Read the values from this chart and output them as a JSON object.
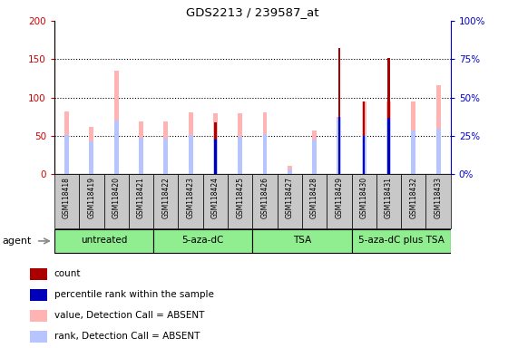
{
  "title": "GDS2213 / 239587_at",
  "samples": [
    "GSM118418",
    "GSM118419",
    "GSM118420",
    "GSM118421",
    "GSM118422",
    "GSM118423",
    "GSM118424",
    "GSM118425",
    "GSM118426",
    "GSM118427",
    "GSM118428",
    "GSM118429",
    "GSM118430",
    "GSM118431",
    "GSM118432",
    "GSM118433"
  ],
  "pink_values": [
    82,
    61,
    135,
    69,
    69,
    81,
    79,
    79,
    81,
    11,
    57,
    75,
    95,
    95,
    95,
    116
  ],
  "lightblue_values": [
    51,
    43,
    70,
    47,
    46,
    51,
    47,
    48,
    52,
    6,
    45,
    73,
    51,
    70,
    57,
    59
  ],
  "dark_red_values": [
    0,
    0,
    0,
    0,
    0,
    0,
    67,
    0,
    0,
    0,
    0,
    165,
    95,
    152,
    0,
    0
  ],
  "blue_values": [
    0,
    0,
    0,
    0,
    0,
    0,
    45,
    0,
    0,
    0,
    0,
    75,
    50,
    73,
    0,
    0
  ],
  "groups": [
    {
      "label": "untreated",
      "start": 0,
      "end": 4
    },
    {
      "label": "5-aza-dC",
      "start": 4,
      "end": 8
    },
    {
      "label": "TSA",
      "start": 8,
      "end": 12
    },
    {
      "label": "5-aza-dC plus TSA",
      "start": 12,
      "end": 16
    }
  ],
  "ylim_left": [
    0,
    200
  ],
  "ylim_right": [
    0,
    100
  ],
  "yticks_left": [
    0,
    50,
    100,
    150,
    200
  ],
  "yticks_right": [
    0,
    25,
    50,
    75,
    100
  ],
  "ytick_labels_right": [
    "0%",
    "25%",
    "50%",
    "75%",
    "100%"
  ],
  "pink_color": "#FFB3B3",
  "lightblue_color": "#B8C4FF",
  "darkred_color": "#AA0000",
  "blue_color": "#0000BB",
  "group_color": "#90EE90",
  "axis_left_color": "#CC0000",
  "axis_right_color": "#0000CC",
  "bg_color": "#FFFFFF",
  "label_bg_color": "#C8C8C8"
}
